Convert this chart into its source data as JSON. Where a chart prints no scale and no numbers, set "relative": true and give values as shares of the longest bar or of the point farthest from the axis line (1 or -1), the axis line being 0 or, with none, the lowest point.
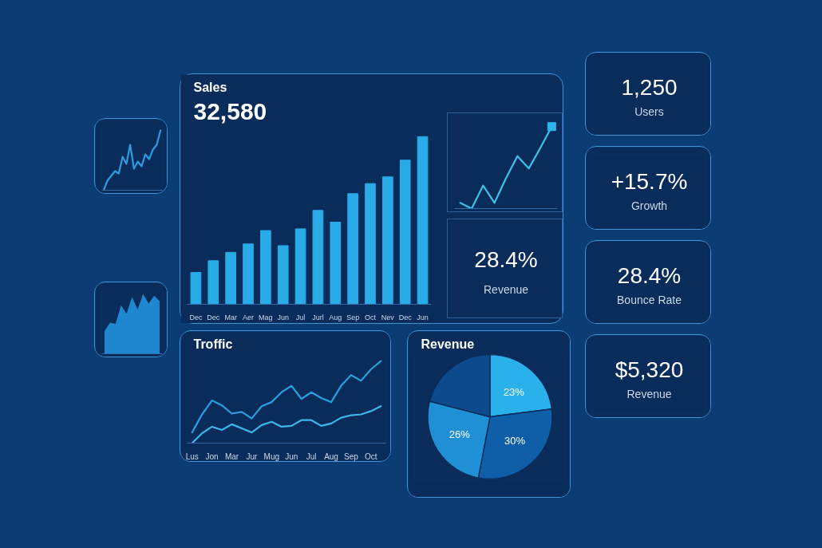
{
  "chart_data": [
    {
      "type": "line",
      "categories": [
        null,
        null,
        null,
        null,
        null,
        null,
        null,
        null,
        null,
        null,
        null,
        null,
        null,
        null,
        null,
        null
      ],
      "values": [
        0,
        0.16,
        0.24,
        0.32,
        0.28,
        0.56,
        0.44,
        0.76,
        0.36,
        0.48,
        0.4,
        0.6,
        0.52,
        0.68,
        0.76,
        1.0
      ],
      "color": "#2e9be0",
      "relative": true
    },
    {
      "type": "area",
      "categories": [
        null,
        null,
        null,
        null,
        null,
        null,
        null,
        null,
        null,
        null,
        null
      ],
      "values": [
        0.38,
        0.52,
        0.5,
        0.81,
        0.67,
        0.95,
        0.74,
        1.0,
        0.84,
        0.97,
        0.88
      ],
      "color": "#1f86d0",
      "relative": true
    },
    {
      "type": "bar",
      "title": "Sales",
      "subtitle": "32,580",
      "categories": [
        "Dec",
        "Dec",
        "Mar",
        "Aer",
        "Mag",
        "Jun",
        "Jul",
        "Jurl",
        "Aug",
        "Sep",
        "Oct",
        "Nev",
        "Dec",
        "Jun"
      ],
      "values": [
        0.19,
        0.26,
        0.31,
        0.36,
        0.44,
        0.35,
        0.45,
        0.56,
        0.49,
        0.66,
        0.72,
        0.76,
        0.86,
        1.0
      ],
      "color": "#29abe8",
      "relative": true
    },
    {
      "type": "line",
      "categories": [
        null,
        null,
        null,
        null,
        null,
        null,
        null,
        null,
        null
      ],
      "relative": true,
      "series": [
        {
          "color": "#3fc1e6",
          "values": [
            0.07,
            0,
            0.28,
            0.07,
            0.37,
            0.64,
            0.49,
            0.74,
            1.0
          ]
        },
        {
          "marker": "square",
          "color": "#2fb5ec",
          "values": [
            null,
            null,
            null,
            null,
            null,
            null,
            null,
            null,
            1.0
          ]
        }
      ]
    },
    {
      "type": "other",
      "annotations": [
        "28.4%",
        "Revenue"
      ]
    },
    {
      "type": "line",
      "title": "Troffic",
      "categories": [
        "Lus",
        null,
        "Jon",
        null,
        "Mar",
        null,
        "Jur",
        null,
        "Mug",
        null,
        "Jun",
        null,
        "Jul",
        null,
        "Aug",
        null,
        "Sep",
        null,
        "Oct",
        null
      ],
      "relative": true,
      "series": [
        {
          "color": "#2a9fe0",
          "values": [
            0.13,
            0.35,
            0.52,
            0.46,
            0.36,
            0.38,
            0.3,
            0.45,
            0.5,
            0.62,
            0.7,
            0.54,
            0.62,
            0.55,
            0.5,
            0.7,
            0.83,
            0.76,
            0.9,
            1.0
          ]
        },
        {
          "color": "#3db6ea",
          "values": [
            0,
            0.12,
            0.2,
            0.16,
            0.23,
            0.18,
            0.13,
            0.22,
            0.26,
            0.2,
            0.21,
            0.28,
            0.28,
            0.21,
            0.24,
            0.31,
            0.34,
            0.35,
            0.39,
            0.45
          ]
        }
      ]
    },
    {
      "type": "pie",
      "title": "Revenue",
      "categories": [
        null,
        null,
        null,
        null
      ],
      "values": [
        23,
        30,
        26,
        21
      ],
      "colors": [
        "#2ab0ea",
        "#0e5ea8",
        "#1f8fd6",
        "#0d4a8c"
      ],
      "value_labels": [
        "23%",
        "30%",
        "26%",
        null
      ]
    },
    {
      "type": "other",
      "annotations": [
        "1,250",
        "Users"
      ]
    },
    {
      "type": "other",
      "annotations": [
        "+15.7%",
        "Growth"
      ]
    },
    {
      "type": "other",
      "annotations": [
        "28.4%",
        "Bounce Rate"
      ]
    },
    {
      "type": "other",
      "annotations": [
        "$5,320",
        "Revenue"
      ]
    }
  ]
}
